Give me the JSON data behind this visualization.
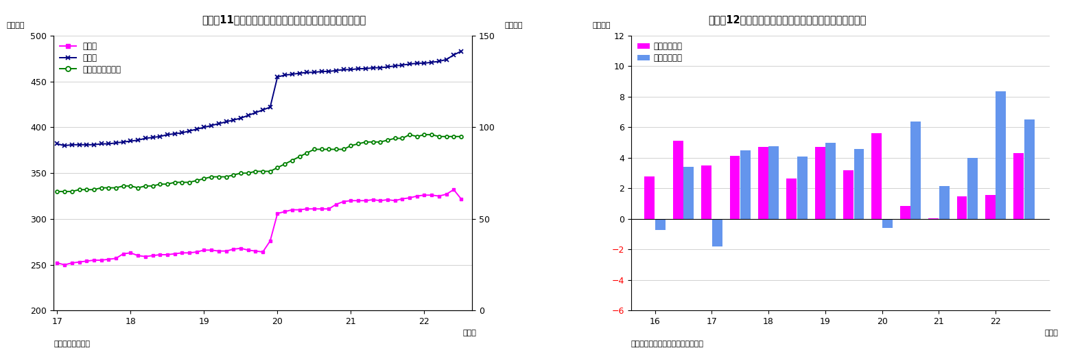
{
  "chart1": {
    "title": "（図表11）民間非金融法人の現預金・借入・債務証券残高",
    "title_left": "（兆円）",
    "title_right": "（兆円）",
    "xlabel": "（年）",
    "source": "（資料）日本銀行",
    "ylim_left": [
      200,
      500
    ],
    "ylim_right": [
      0,
      150
    ],
    "yticks_left": [
      200,
      250,
      300,
      350,
      400,
      450,
      500
    ],
    "yticks_right": [
      0,
      50,
      100,
      150
    ],
    "legend": [
      "現預金",
      "借入金",
      "債務証券（右軸）"
    ],
    "colors": [
      "#FF00FF",
      "#000080",
      "#008000"
    ],
    "x_labels": [
      "17",
      "18",
      "19",
      "20",
      "21",
      "22"
    ],
    "x_ticks": [
      17,
      18,
      19,
      20,
      21,
      22
    ],
    "genyo_x": [
      17.0,
      17.1,
      17.2,
      17.3,
      17.4,
      17.5,
      17.6,
      17.7,
      17.8,
      17.9,
      18.0,
      18.1,
      18.2,
      18.3,
      18.4,
      18.5,
      18.6,
      18.7,
      18.8,
      18.9,
      19.0,
      19.1,
      19.2,
      19.3,
      19.4,
      19.5,
      19.6,
      19.7,
      19.8,
      19.9,
      20.0,
      20.1,
      20.2,
      20.3,
      20.4,
      20.5,
      20.6,
      20.7,
      20.8,
      20.9,
      21.0,
      21.1,
      21.2,
      21.3,
      21.4,
      21.5,
      21.6,
      21.7,
      21.8,
      21.9,
      22.0,
      22.1,
      22.2,
      22.3,
      22.4,
      22.5
    ],
    "genyo_y": [
      252,
      250,
      252,
      253,
      254,
      255,
      255,
      256,
      257,
      262,
      263,
      260,
      259,
      260,
      261,
      261,
      262,
      263,
      263,
      264,
      266,
      266,
      265,
      265,
      267,
      268,
      266,
      265,
      264,
      276,
      306,
      308,
      310,
      310,
      311,
      311,
      311,
      311,
      316,
      319,
      320,
      320,
      320,
      321,
      320,
      321,
      320,
      322,
      323,
      325,
      326,
      326,
      325,
      327,
      332,
      322
    ],
    "kariire_x": [
      17.0,
      17.1,
      17.2,
      17.3,
      17.4,
      17.5,
      17.6,
      17.7,
      17.8,
      17.9,
      18.0,
      18.1,
      18.2,
      18.3,
      18.4,
      18.5,
      18.6,
      18.7,
      18.8,
      18.9,
      19.0,
      19.1,
      19.2,
      19.3,
      19.4,
      19.5,
      19.6,
      19.7,
      19.8,
      19.9,
      20.0,
      20.1,
      20.2,
      20.3,
      20.4,
      20.5,
      20.6,
      20.7,
      20.8,
      20.9,
      21.0,
      21.1,
      21.2,
      21.3,
      21.4,
      21.5,
      21.6,
      21.7,
      21.8,
      21.9,
      22.0,
      22.1,
      22.2,
      22.3,
      22.4,
      22.5
    ],
    "kariire_y": [
      382,
      380,
      381,
      381,
      381,
      381,
      382,
      382,
      383,
      384,
      385,
      386,
      388,
      389,
      390,
      392,
      393,
      394,
      396,
      398,
      400,
      402,
      404,
      406,
      408,
      410,
      413,
      416,
      419,
      422,
      455,
      457,
      458,
      459,
      460,
      460,
      461,
      461,
      462,
      463,
      463,
      464,
      464,
      465,
      465,
      466,
      467,
      468,
      469,
      470,
      470,
      471,
      472,
      474,
      479,
      483
    ],
    "saimu_x": [
      17.0,
      17.1,
      17.2,
      17.3,
      17.4,
      17.5,
      17.6,
      17.7,
      17.8,
      17.9,
      18.0,
      18.1,
      18.2,
      18.3,
      18.4,
      18.5,
      18.6,
      18.7,
      18.8,
      18.9,
      19.0,
      19.1,
      19.2,
      19.3,
      19.4,
      19.5,
      19.6,
      19.7,
      19.8,
      19.9,
      20.0,
      20.1,
      20.2,
      20.3,
      20.4,
      20.5,
      20.6,
      20.7,
      20.8,
      20.9,
      21.0,
      21.1,
      21.2,
      21.3,
      21.4,
      21.5,
      21.6,
      21.7,
      21.8,
      21.9,
      22.0,
      22.1,
      22.2,
      22.3,
      22.4,
      22.5
    ],
    "saimu_y": [
      65,
      65,
      65,
      66,
      66,
      66,
      67,
      67,
      67,
      68,
      68,
      67,
      68,
      68,
      69,
      69,
      70,
      70,
      70,
      71,
      72,
      73,
      73,
      73,
      74,
      75,
      75,
      76,
      76,
      76,
      78,
      80,
      82,
      84,
      86,
      88,
      88,
      88,
      88,
      88,
      90,
      91,
      92,
      92,
      92,
      93,
      94,
      94,
      96,
      95,
      96,
      96,
      95,
      95,
      95,
      95
    ]
  },
  "chart2": {
    "title": "（図表12）民間非金融法人の対外投資額（資金フロー）",
    "title_left": "（兆円）",
    "xlabel": "（年）",
    "source": "（資料）日本銀行「資金循環統計」",
    "ylim": [
      -6,
      12
    ],
    "yticks": [
      -6,
      -4,
      -2,
      0,
      2,
      4,
      6,
      8,
      10,
      12
    ],
    "legend": [
      "対外直接投資",
      "対外証券投資"
    ],
    "colors": [
      "#FF00FF",
      "#6495ED"
    ],
    "bar_width": 0.18,
    "x_positions": [
      16.0,
      16.5,
      17.0,
      17.5,
      18.0,
      18.5,
      19.0,
      19.5,
      20.0,
      20.5,
      21.0,
      21.5,
      22.0,
      22.5
    ],
    "x_labels": [
      "16",
      "17",
      "18",
      "19",
      "20",
      "21",
      "22"
    ],
    "x_tick_positions": [
      16.0,
      17.0,
      18.0,
      19.0,
      20.0,
      21.0,
      22.0
    ],
    "direct": [
      2.8,
      5.1,
      3.5,
      4.15,
      4.7,
      2.65,
      4.7,
      3.2,
      5.6,
      0.85,
      0.05,
      1.5,
      1.55,
      4.3
    ],
    "securities": [
      -0.7,
      3.4,
      -1.8,
      4.5,
      4.75,
      4.1,
      5.0,
      4.6,
      -0.6,
      6.4,
      2.15,
      4.0,
      8.35,
      6.5
    ]
  }
}
